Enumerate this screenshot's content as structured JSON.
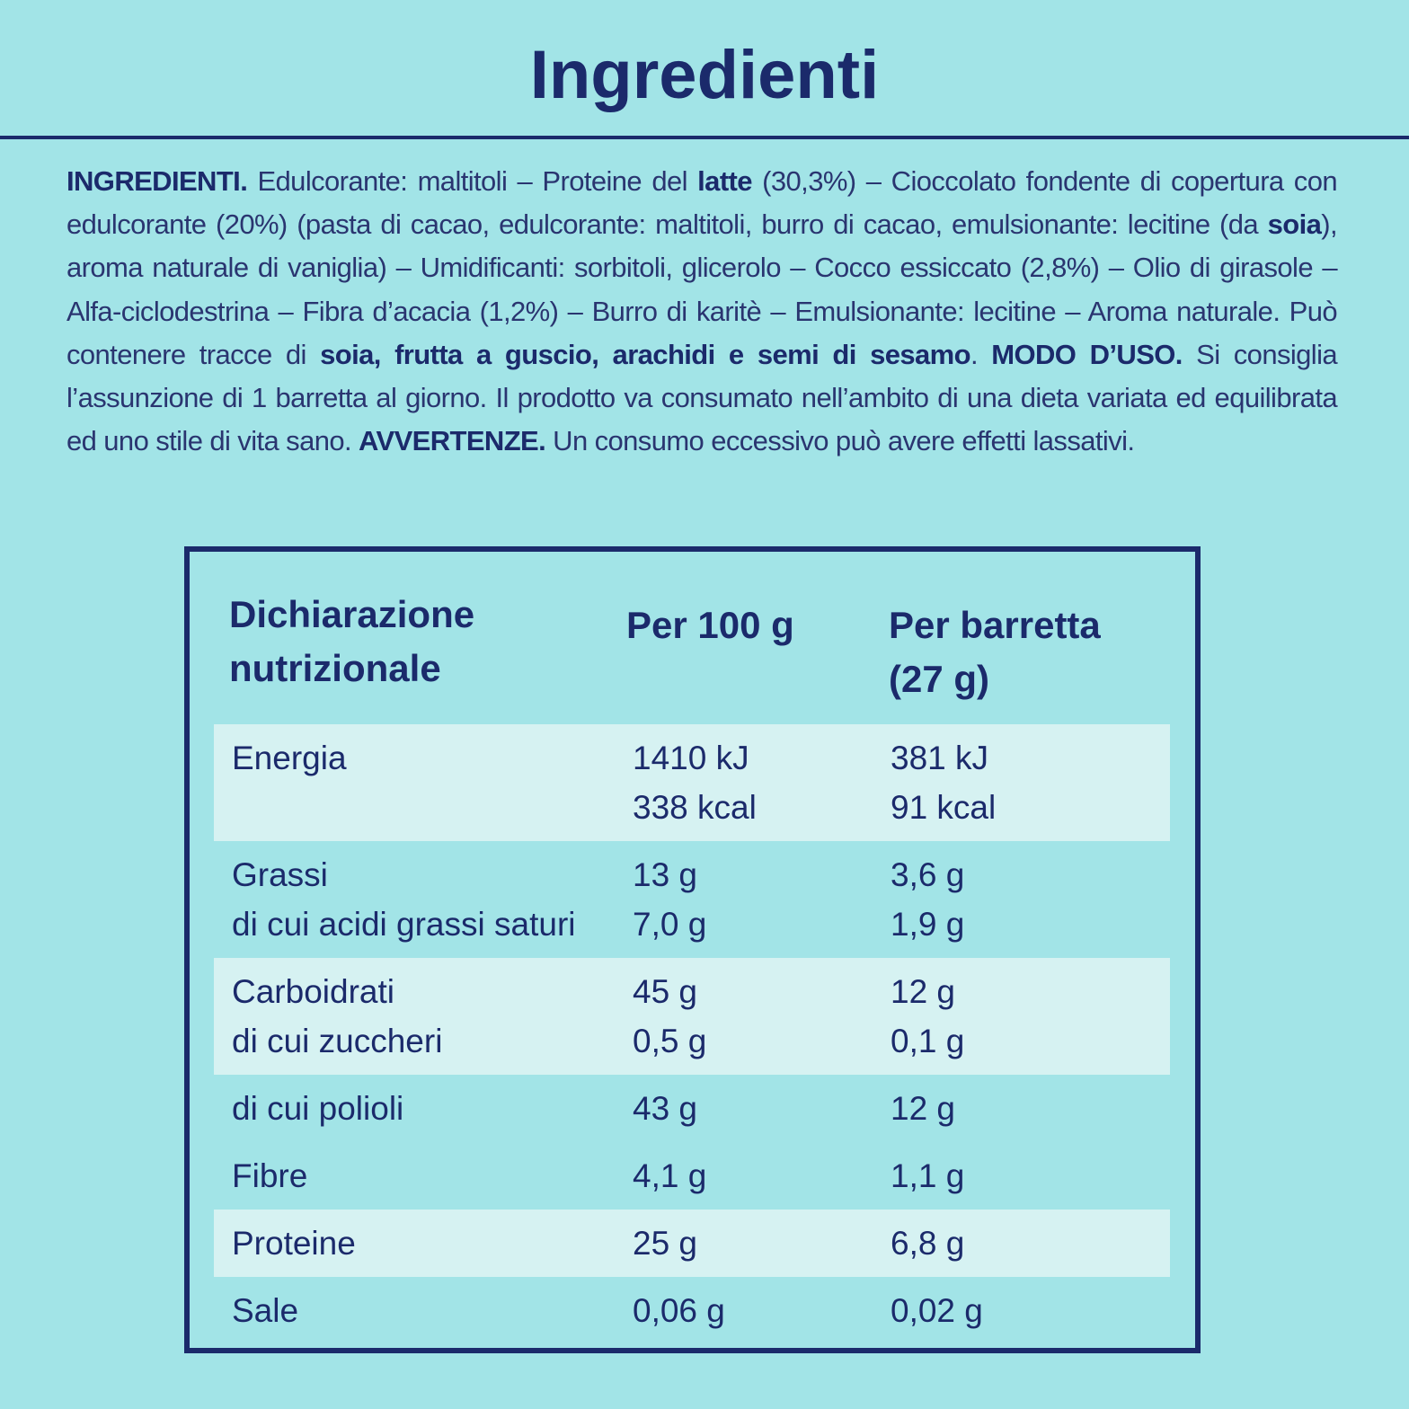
{
  "header": {
    "title": "Ingredienti"
  },
  "ingredients": {
    "segments": [
      {
        "text": "INGREDIENTI.",
        "bold": true
      },
      {
        "text": " Edulcorante: maltitoli – Proteine del ",
        "bold": false
      },
      {
        "text": "latte",
        "bold": true
      },
      {
        "text": " (30,3%) – Cioccolato fondente di copertura con edulcorante (20%) (pasta di cacao, edulcorante: maltitoli, burro di cacao, emulsionante: lecitine (da ",
        "bold": false
      },
      {
        "text": "soia",
        "bold": true
      },
      {
        "text": "), aroma naturale di vaniglia) – Umidificanti: sorbitoli, glicerolo – Cocco essiccato (2,8%) – Olio di girasole – Alfa-ciclodestrina – Fibra d’acacia (1,2%) – Burro di karitè – Emulsionante: lecitine – Aroma naturale. Può contenere tracce di ",
        "bold": false
      },
      {
        "text": "soia, frutta a guscio, arachidi e semi di sesamo",
        "bold": true
      },
      {
        "text": ". ",
        "bold": false
      },
      {
        "text": "MODO D’USO.",
        "bold": true
      },
      {
        "text": " Si consiglia l’assunzione di 1 barretta al giorno. Il prodotto va consumato nell’ambito di una dieta variata ed equilibrata ed uno stile di vita sano. ",
        "bold": false
      },
      {
        "text": "AVVERTENZE.",
        "bold": true
      },
      {
        "text": " Un consumo eccessivo può avere effetti lassativi.",
        "bold": false
      }
    ]
  },
  "table": {
    "header": [
      [
        "Dichiarazione",
        "nutrizionale"
      ],
      [
        "Per 100 g"
      ],
      [
        "Per barretta",
        "(27 g)"
      ]
    ],
    "rows": [
      {
        "shaded": true,
        "cells": [
          [
            "Energia"
          ],
          [
            "1410 kJ",
            "338 kcal"
          ],
          [
            "381 kJ",
            "91 kcal"
          ]
        ]
      },
      {
        "shaded": false,
        "cells": [
          [
            "Grassi",
            "di cui acidi grassi saturi"
          ],
          [
            "13 g",
            "7,0 g"
          ],
          [
            "3,6 g",
            "1,9 g"
          ]
        ]
      },
      {
        "shaded": true,
        "cells": [
          [
            "Carboidrati",
            "di cui zuccheri"
          ],
          [
            "45 g",
            "0,5 g"
          ],
          [
            "12 g",
            "0,1 g"
          ]
        ]
      },
      {
        "shaded": false,
        "cells": [
          [
            "di cui polioli"
          ],
          [
            "43 g"
          ],
          [
            "12 g"
          ]
        ]
      },
      {
        "shaded": false,
        "cells": [
          [
            "Fibre"
          ],
          [
            "4,1 g"
          ],
          [
            "1,1 g"
          ]
        ]
      },
      {
        "shaded": true,
        "cells": [
          [
            "Proteine"
          ],
          [
            "25 g"
          ],
          [
            "6,8 g"
          ]
        ]
      },
      {
        "shaded": false,
        "cells": [
          [
            "Sale"
          ],
          [
            "0,06 g"
          ],
          [
            "0,02 g"
          ]
        ]
      }
    ]
  }
}
